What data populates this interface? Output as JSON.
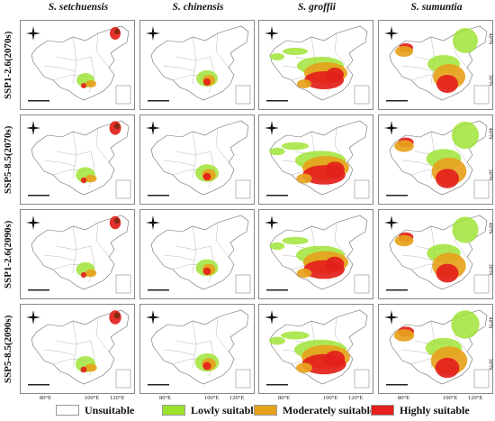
{
  "columns": [
    "S. setchuensis",
    "S. chinensis",
    "S. groffii",
    "S. sumuntia"
  ],
  "rows": [
    "SSP1-2.6(2070s)",
    "SSP5-8.5(2070s)",
    "SSP1-2.6(2090s)",
    "SSP5-8.5(2090s)"
  ],
  "lon_ticks": [
    "80°E",
    "100°E",
    "120°E"
  ],
  "lat_ticks": [
    "40°N",
    "30°N"
  ],
  "legend": [
    {
      "label": "Unsuitable",
      "color": "#ffffff"
    },
    {
      "label": "Lowly suitable",
      "color": "#9be22c"
    },
    {
      "label": "Moderately suitable",
      "color": "#e6a21c"
    },
    {
      "label": "Highly suitable",
      "color": "#e3201b"
    }
  ],
  "colors": {
    "border": "#6b6b6b",
    "low": "#9be22c",
    "moderate": "#e6a21c",
    "high": "#e3201b",
    "dark": "#7a2a10"
  }
}
